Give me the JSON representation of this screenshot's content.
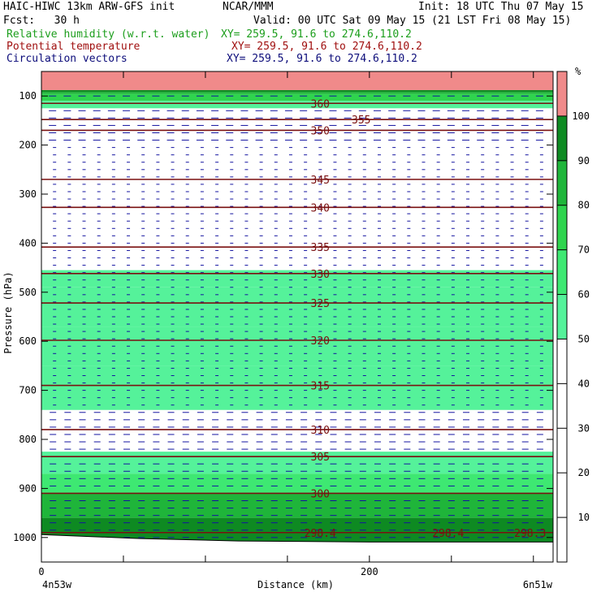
{
  "header": {
    "model": "HAIC-HIWC 13km ARW-GFS init",
    "org": "NCAR/MMM",
    "init": "Init: 18 UTC Thu 07 May 15",
    "fcst": "Fcst:   30 h",
    "valid": "Valid: 00 UTC Sat 09 May 15 (21 LST Fri 08 May 15)"
  },
  "fields": [
    {
      "name": "Relative humidity (w.r.t. water)",
      "xy": "XY= 259.5, 91.6 to 274.6,110.2",
      "color": "#1c9e1c"
    },
    {
      "name": "Potential temperature",
      "xy": "XY= 259.5, 91.6 to 274.6,110.2",
      "color": "#a01010"
    },
    {
      "name": "Circulation vectors",
      "xy": "XY= 259.5, 91.6 to 274.6,110.2",
      "color": "#0c0c7a"
    }
  ],
  "chart_data": {
    "type": "heatmap",
    "xlabel": "Distance (km)",
    "ylabel": "Pressure (hPa)",
    "x_ticks": [
      "0",
      "200"
    ],
    "x_range": [
      0,
      312
    ],
    "y_ticks": [
      "100",
      "200",
      "300",
      "400",
      "500",
      "600",
      "700",
      "800",
      "900",
      "1000"
    ],
    "y_range": [
      1050,
      50
    ],
    "x_endpoints": [
      "4n53w",
      "6n51w"
    ],
    "colorbar": {
      "unit": "%",
      "ticks": [
        "10",
        "20",
        "30",
        "40",
        "50",
        "60",
        "70",
        "80",
        "90",
        "100"
      ],
      "levels": [
        {
          "from": 0,
          "to": 50,
          "color": "#ffffff"
        },
        {
          "from": 50,
          "to": 60,
          "color": "#55f29a"
        },
        {
          "from": 60,
          "to": 70,
          "color": "#3ee872"
        },
        {
          "from": 70,
          "to": 80,
          "color": "#2fd44e"
        },
        {
          "from": 80,
          "to": 90,
          "color": "#1fb53a"
        },
        {
          "from": 90,
          "to": 100,
          "color": "#0e8a22"
        },
        {
          "from": 100,
          "to": 110,
          "color": "#f08a8a"
        }
      ]
    },
    "rh_bands": [
      {
        "p_top": 50,
        "p_bot": 88,
        "rh": 105
      },
      {
        "p_top": 88,
        "p_bot": 92,
        "rh": 95
      },
      {
        "p_top": 92,
        "p_bot": 96,
        "rh": 85
      },
      {
        "p_top": 96,
        "p_bot": 110,
        "rh": 75
      },
      {
        "p_top": 110,
        "p_bot": 125,
        "rh": 55
      },
      {
        "p_top": 455,
        "p_bot": 490,
        "rh": 55
      },
      {
        "p_top": 490,
        "p_bot": 570,
        "rh": 55
      },
      {
        "p_top": 570,
        "p_bot": 650,
        "rh": 55
      },
      {
        "p_top": 650,
        "p_bot": 740,
        "rh": 55
      },
      {
        "p_top": 825,
        "p_bot": 870,
        "rh": 55
      },
      {
        "p_top": 870,
        "p_bot": 910,
        "rh": 65
      },
      {
        "p_top": 910,
        "p_bot": 960,
        "rh": 80
      },
      {
        "p_top": 960,
        "p_bot": 1010,
        "rh": 92
      }
    ],
    "isentropes": [
      {
        "theta": "360",
        "p": 115,
        "label_x": 170
      },
      {
        "theta": "355",
        "p": 148,
        "label_x": 195
      },
      {
        "theta": "350",
        "p": 170,
        "label_x": 170
      },
      {
        "theta": "345",
        "p": 270,
        "label_x": 170
      },
      {
        "theta": "340",
        "p": 327,
        "label_x": 170
      },
      {
        "theta": "335",
        "p": 408,
        "label_x": 170
      },
      {
        "theta": "330",
        "p": 462,
        "label_x": 170
      },
      {
        "theta": "325",
        "p": 522,
        "label_x": 170
      },
      {
        "theta": "320",
        "p": 598,
        "label_x": 170
      },
      {
        "theta": "315",
        "p": 690,
        "label_x": 170
      },
      {
        "theta": "310",
        "p": 780,
        "label_x": 170
      },
      {
        "theta": "305",
        "p": 835,
        "label_x": 170
      },
      {
        "theta": "300",
        "p": 910,
        "label_x": 170
      },
      {
        "theta": "298.4",
        "p": 990,
        "label_x": 170
      },
      {
        "theta": "298.4",
        "p": 990,
        "label_x": 248
      },
      {
        "theta": "298.3",
        "p": 990,
        "label_x": 298
      }
    ],
    "surface_pressure": [
      {
        "x": 0,
        "p": 995
      },
      {
        "x": 60,
        "p": 1003
      },
      {
        "x": 120,
        "p": 1008
      },
      {
        "x": 200,
        "p": 1010
      },
      {
        "x": 312,
        "p": 1010
      }
    ]
  }
}
